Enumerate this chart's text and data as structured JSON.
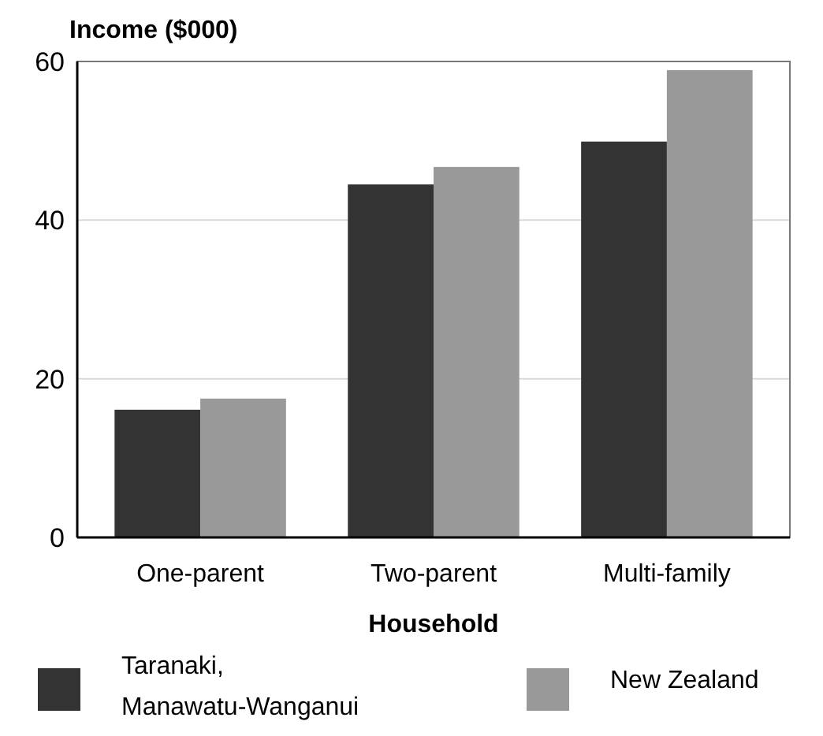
{
  "chart_data": {
    "type": "bar",
    "ylabel": "Income ($000)",
    "xlabel": "Household",
    "categories": [
      "One-parent",
      "Two-parent",
      "Multi-family"
    ],
    "series": [
      {
        "name": "Taranaki, Manawatu-Wanganui",
        "color": "#333333",
        "values": [
          16.1,
          44.5,
          49.9
        ]
      },
      {
        "name": "New Zealand",
        "color": "#999999",
        "values": [
          17.5,
          46.7,
          58.9
        ]
      }
    ],
    "ylim": [
      0,
      60
    ],
    "yticks": [
      0,
      20,
      40,
      60
    ],
    "grid": "y",
    "legend": "bottom"
  }
}
